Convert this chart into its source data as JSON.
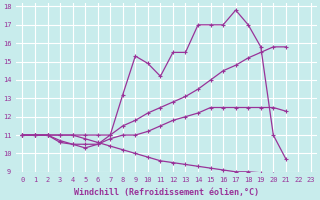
{
  "xlabel": "Windchill (Refroidissement éolien,°C)",
  "bg_color": "#c8ecec",
  "grid_color": "#ffffff",
  "line_color": "#993399",
  "xlim": [
    -0.5,
    23.5
  ],
  "ylim": [
    9,
    18.2
  ],
  "xticks": [
    0,
    1,
    2,
    3,
    4,
    5,
    6,
    7,
    8,
    9,
    10,
    11,
    12,
    13,
    14,
    15,
    16,
    17,
    18,
    19,
    20,
    21,
    22,
    23
  ],
  "yticks": [
    9,
    10,
    11,
    12,
    13,
    14,
    15,
    16,
    17,
    18
  ],
  "lines": [
    {
      "x": [
        0,
        1,
        2,
        3,
        4,
        5,
        6,
        7,
        8,
        9,
        10,
        11,
        12,
        13,
        14,
        15,
        16,
        17,
        18,
        19,
        20,
        21
      ],
      "y": [
        11,
        11,
        11,
        10.6,
        10.5,
        10.3,
        10.5,
        11.0,
        13.2,
        15.3,
        14.9,
        14.2,
        15.5,
        15.5,
        17.0,
        17.0,
        17.0,
        17.8,
        17.0,
        15.8,
        11.0,
        9.7
      ]
    },
    {
      "x": [
        0,
        1,
        2,
        3,
        4,
        5,
        6,
        7,
        8,
        9,
        10,
        11,
        12,
        13,
        14,
        15,
        16,
        17,
        18,
        19,
        20,
        21
      ],
      "y": [
        11,
        11,
        11,
        11,
        11,
        11,
        11,
        11,
        11.5,
        11.8,
        12.2,
        12.5,
        12.8,
        13.1,
        13.5,
        14.0,
        14.5,
        14.8,
        15.2,
        15.5,
        15.8,
        15.8
      ]
    },
    {
      "x": [
        0,
        1,
        2,
        3,
        4,
        5,
        6,
        7,
        8,
        9,
        10,
        11,
        12,
        13,
        14,
        15,
        16,
        17,
        18,
        19,
        20,
        21
      ],
      "y": [
        11,
        11,
        11,
        10.7,
        10.5,
        10.5,
        10.5,
        10.8,
        11.0,
        11.0,
        11.2,
        11.5,
        11.8,
        12.0,
        12.2,
        12.5,
        12.5,
        12.5,
        12.5,
        12.5,
        12.5,
        12.3
      ]
    },
    {
      "x": [
        0,
        1,
        2,
        3,
        4,
        5,
        6,
        7,
        8,
        9,
        10,
        11,
        12,
        13,
        14,
        15,
        16,
        17,
        18,
        19,
        20,
        21,
        22,
        23
      ],
      "y": [
        11,
        11,
        11,
        11,
        11,
        10.8,
        10.6,
        10.4,
        10.2,
        10.0,
        9.8,
        9.6,
        9.5,
        9.4,
        9.3,
        9.2,
        9.1,
        9.0,
        9.0,
        8.95,
        8.9,
        8.85,
        8.8,
        8.75
      ]
    }
  ],
  "marker": "+",
  "marker_size": 3,
  "line_width": 0.9,
  "tick_fontsize": 5,
  "xlabel_fontsize": 6
}
